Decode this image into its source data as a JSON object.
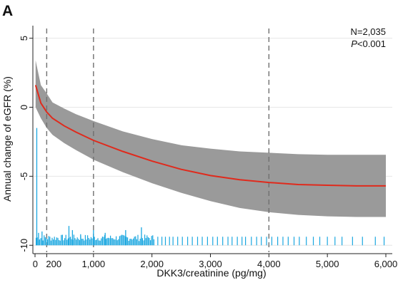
{
  "chart_data": {
    "type": "line",
    "panel_label": "A",
    "xlabel": "DKK3/creatinine (pg/mg)",
    "ylabel": "Annual change of eGFR (%)",
    "xlim": [
      0,
      6050
    ],
    "ylim": [
      -10.4,
      5.6
    ],
    "xticks": [
      0,
      200,
      1000,
      2000,
      3000,
      4000,
      5000,
      6000
    ],
    "xtick_labels": [
      "0",
      "200",
      "1,000",
      "2,000",
      "3,000",
      "4,000",
      "5,000",
      "6,000"
    ],
    "yticks": [
      5,
      0,
      -5,
      -10
    ],
    "ytick_labels": [
      "5",
      "0",
      "-5",
      "-10"
    ],
    "grid": "horizontal",
    "reference_lines_x": [
      200,
      1000,
      4000
    ],
    "annotation": {
      "n_text": "N=2,035",
      "p_italic": "P",
      "p_rest": "<0.001"
    },
    "series": [
      {
        "type": "line",
        "x": [
          10,
          100,
          200,
          300,
          500,
          700,
          1000,
          1500,
          2000,
          2500,
          3000,
          3500,
          4000,
          4500,
          5000,
          5500,
          6000
        ],
        "values": [
          1.6,
          0.3,
          -0.35,
          -0.8,
          -1.35,
          -1.8,
          -2.4,
          -3.2,
          -3.9,
          -4.5,
          -4.95,
          -5.25,
          -5.45,
          -5.6,
          -5.65,
          -5.7,
          -5.7
        ]
      },
      {
        "type": "band",
        "x": [
          10,
          100,
          200,
          300,
          500,
          700,
          1000,
          1500,
          2000,
          2500,
          3000,
          3500,
          4000,
          4500,
          5000,
          5500,
          6000
        ],
        "upper": [
          3.4,
          1.6,
          1.0,
          0.35,
          -0.1,
          -0.5,
          -1.0,
          -1.75,
          -2.3,
          -2.75,
          -3.0,
          -3.2,
          -3.3,
          -3.4,
          -3.45,
          -3.45,
          -3.45
        ],
        "lower": [
          0.0,
          -0.8,
          -1.5,
          -2.0,
          -2.6,
          -3.1,
          -3.8,
          -4.7,
          -5.5,
          -6.2,
          -6.8,
          -7.3,
          -7.6,
          -7.8,
          -7.9,
          -7.95,
          -7.95
        ]
      },
      {
        "type": "rug",
        "base": -10.0,
        "tall_spikes": [
          {
            "x": 30,
            "top": -1.5
          },
          {
            "x": 60,
            "top": -9.1
          },
          {
            "x": 120,
            "top": -9.0
          },
          {
            "x": 580,
            "top": -8.6
          },
          {
            "x": 640,
            "top": -8.9
          },
          {
            "x": 780,
            "top": -9.2
          },
          {
            "x": 1000,
            "top": -8.9
          },
          {
            "x": 1200,
            "top": -9.1
          },
          {
            "x": 1550,
            "top": -8.9
          },
          {
            "x": 1820,
            "top": -8.7
          }
        ],
        "sparse_ticks_x": [
          2100,
          2170,
          2230,
          2300,
          2360,
          2440,
          2520,
          2610,
          2690,
          2780,
          2860,
          2950,
          3040,
          3120,
          3210,
          3300,
          3370,
          3460,
          3540,
          3600,
          3700,
          3790,
          3870,
          3960,
          4050,
          4150,
          4240,
          4330,
          4430,
          4520,
          4640,
          4760,
          4870,
          5000,
          5130,
          5250,
          5430,
          5600,
          5820,
          5970
        ]
      }
    ]
  }
}
